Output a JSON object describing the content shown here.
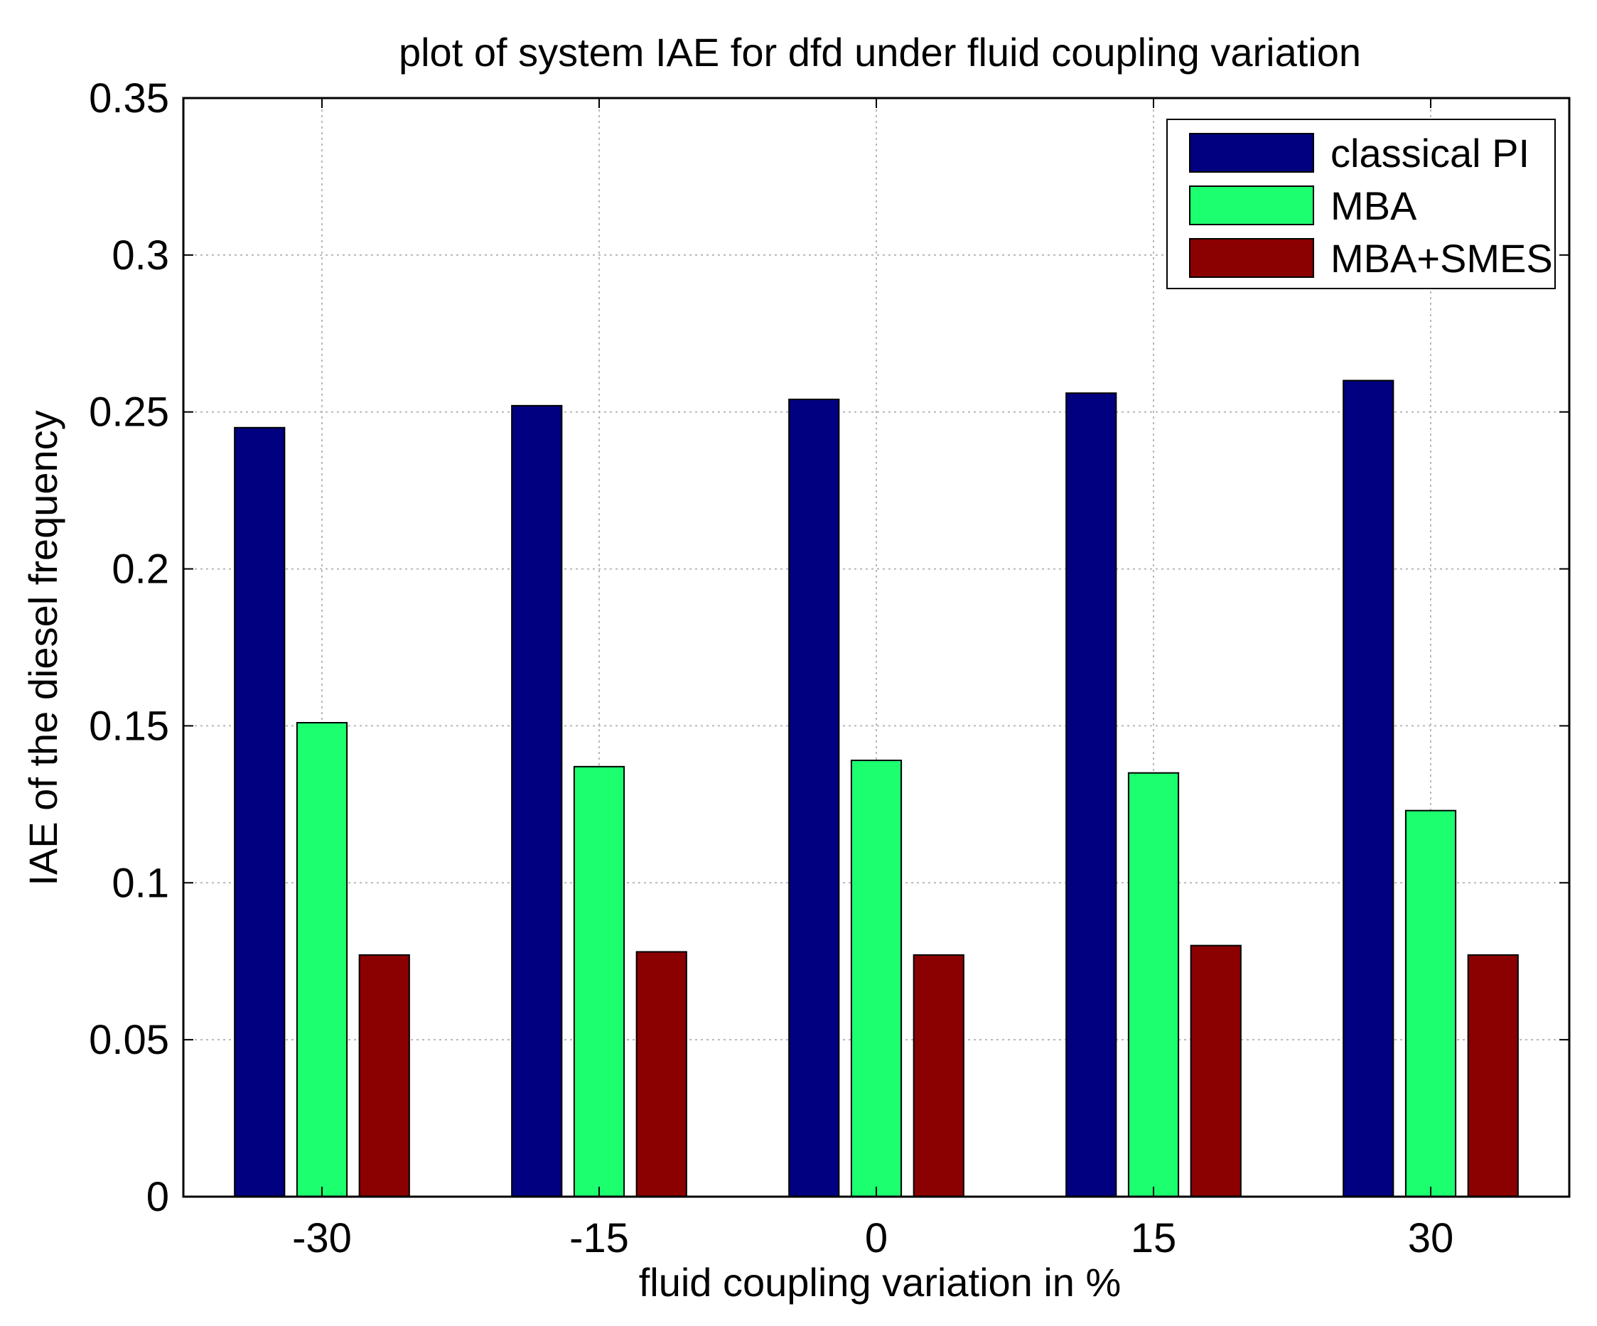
{
  "chart_data": {
    "type": "bar",
    "title": "plot of system IAE for dfd under fluid coupling variation",
    "xlabel": "fluid coupling variation in %",
    "ylabel": "IAE of the diesel frequency",
    "categories": [
      "-30",
      "-15",
      "0",
      "15",
      "30"
    ],
    "ylim": [
      0,
      0.35
    ],
    "yticks": [
      0,
      0.05,
      0.1,
      0.15,
      0.2,
      0.25,
      0.3,
      0.35
    ],
    "ytick_labels": [
      "0",
      "0.05",
      "0.1",
      "0.15",
      "0.2",
      "0.25",
      "0.3",
      "0.35"
    ],
    "grid": true,
    "legend_position": "top-right",
    "series": [
      {
        "name": "classical PI",
        "color": "#000080",
        "values": [
          0.245,
          0.252,
          0.254,
          0.256,
          0.26
        ]
      },
      {
        "name": "MBA",
        "color": "#1CFF6E",
        "values": [
          0.151,
          0.137,
          0.139,
          0.135,
          0.123
        ]
      },
      {
        "name": "MBA+SMES",
        "color": "#8B0000",
        "values": [
          0.077,
          0.078,
          0.077,
          0.08,
          0.077
        ]
      }
    ]
  }
}
